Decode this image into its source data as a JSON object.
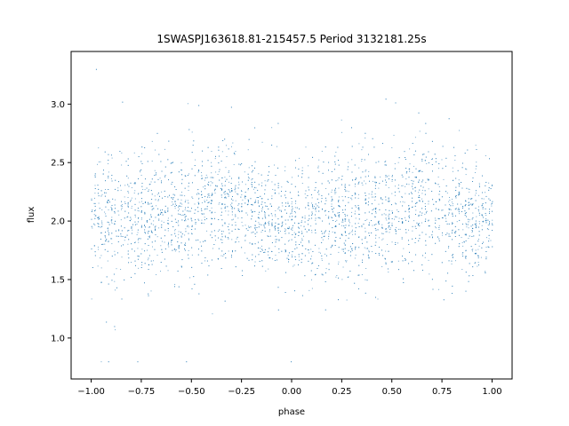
{
  "chart_data": {
    "type": "scatter",
    "title": "1SWASPJ163618.81-215457.5 Period 3132181.25s",
    "xlabel": "phase",
    "ylabel": "flux",
    "xlim": [
      -1.1,
      1.1
    ],
    "ylim": [
      0.65,
      3.45
    ],
    "x_ticks": [
      -1.0,
      -0.75,
      -0.5,
      -0.25,
      0.0,
      0.25,
      0.5,
      0.75,
      1.0
    ],
    "x_tick_labels": [
      "−1.00",
      "−0.75",
      "−0.50",
      "−0.25",
      "0.00",
      "0.25",
      "0.50",
      "0.75",
      "1.00"
    ],
    "y_ticks": [
      1.0,
      1.5,
      2.0,
      2.5,
      3.0
    ],
    "y_tick_labels": [
      "1.0",
      "1.5",
      "2.0",
      "2.5",
      "3.0"
    ],
    "grid": false,
    "marker_color": "#1f77b4",
    "series": [
      {
        "x_range": [
          -1.0,
          1.0
        ],
        "y_center": 2.0,
        "y_spread": 0.25,
        "y_min": 0.8,
        "y_max": 3.3,
        "profile": [
          {
            "phase": -1.0,
            "y_center": 2.0
          },
          {
            "phase": -0.8,
            "y_center": 2.0
          },
          {
            "phase": -0.65,
            "y_center": 2.05
          },
          {
            "phase": -0.5,
            "y_center": 2.1
          },
          {
            "phase": -0.3,
            "y_center": 2.15
          },
          {
            "phase": -0.15,
            "y_center": 2.05
          },
          {
            "phase": 0.0,
            "y_center": 1.98
          },
          {
            "phase": 0.2,
            "y_center": 2.0
          },
          {
            "phase": 0.35,
            "y_center": 2.05
          },
          {
            "phase": 0.5,
            "y_center": 2.1
          },
          {
            "phase": 0.7,
            "y_center": 2.15
          },
          {
            "phase": 0.85,
            "y_center": 2.05
          },
          {
            "phase": 1.0,
            "y_center": 2.0
          }
        ]
      }
    ]
  }
}
